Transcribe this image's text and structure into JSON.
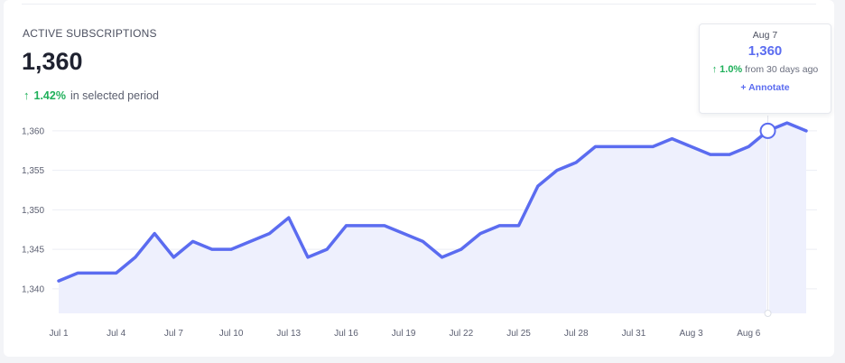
{
  "metric": {
    "title": "ACTIVE SUBSCRIPTIONS",
    "value": "1,360",
    "change_pct": "1.42%",
    "change_text": "in selected period"
  },
  "tooltip": {
    "date": "Aug 7",
    "value": "1,360",
    "change_pct": "1.0%",
    "change_text": "from 30 days ago",
    "annotate_label": "+ Annotate"
  },
  "colors": {
    "line": "#5b6cf0",
    "area": "#eef0fd",
    "grid": "#eceef4",
    "positive": "#1fb05a"
  },
  "icons": {
    "up": "arrow-up-icon"
  },
  "chart_data": {
    "type": "area",
    "title": "",
    "xlabel": "",
    "ylabel": "",
    "x": [
      "Jul 1",
      "Jul 2",
      "Jul 3",
      "Jul 4",
      "Jul 5",
      "Jul 6",
      "Jul 7",
      "Jul 8",
      "Jul 9",
      "Jul 10",
      "Jul 11",
      "Jul 12",
      "Jul 13",
      "Jul 14",
      "Jul 15",
      "Jul 16",
      "Jul 17",
      "Jul 18",
      "Jul 19",
      "Jul 20",
      "Jul 21",
      "Jul 22",
      "Jul 23",
      "Jul 24",
      "Jul 25",
      "Jul 26",
      "Jul 27",
      "Jul 28",
      "Jul 29",
      "Jul 30",
      "Jul 31",
      "Aug 1",
      "Aug 2",
      "Aug 3",
      "Aug 4",
      "Aug 5",
      "Aug 6",
      "Aug 7",
      "Aug 8",
      "Aug 9"
    ],
    "series": [
      {
        "values": [
          1341,
          1342,
          1342,
          1342,
          1344,
          1347,
          1344,
          1346,
          1345,
          1345,
          1346,
          1347,
          1349,
          1344,
          1345,
          1348,
          1348,
          1348,
          1347,
          1346,
          1344,
          1345,
          1347,
          1348,
          1348,
          1353,
          1355,
          1356,
          1358,
          1358,
          1358,
          1358,
          1359,
          1358,
          1357,
          1357,
          1358,
          1360,
          1361,
          1360
        ]
      }
    ],
    "x_ticks": [
      "Jul 1",
      "Jul 4",
      "Jul 7",
      "Jul 10",
      "Jul 13",
      "Jul 16",
      "Jul 19",
      "Jul 22",
      "Jul 25",
      "Jul 28",
      "Jul 31",
      "Aug 3",
      "Aug 6"
    ],
    "y_ticks": [
      1340,
      1345,
      1350,
      1355,
      1360
    ],
    "y_tick_labels": [
      "1,340",
      "1,345",
      "1,350",
      "1,355",
      "1,360"
    ],
    "ylim": [
      1336.9,
      1360.9
    ],
    "grid": true,
    "legend": "none",
    "highlight": {
      "x": "Aug 7",
      "y": 1360
    }
  }
}
